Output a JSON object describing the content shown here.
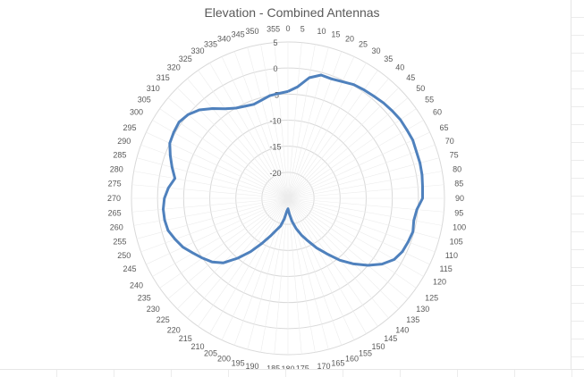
{
  "chart_data": {
    "type": "polar-line",
    "title": "Elevation - Combined Antennas",
    "radial_axis": {
      "min": -25,
      "max": 5,
      "ticks": [
        -20,
        -15,
        -10,
        -5,
        0,
        5
      ],
      "tick_labels": [
        "-20",
        "-15",
        "-10",
        "-5",
        "0",
        "5"
      ]
    },
    "angle_labels": [
      "0",
      "5",
      "10",
      "15",
      "20",
      "25",
      "30",
      "35",
      "40",
      "45",
      "50",
      "55",
      "60",
      "65",
      "70",
      "75",
      "80",
      "85",
      "90",
      "95",
      "100",
      "105",
      "110",
      "115",
      "120",
      "125",
      "130",
      "135",
      "140",
      "145",
      "150",
      "155",
      "160",
      "165",
      "170",
      "175",
      "180",
      "185",
      "190",
      "195",
      "200",
      "205",
      "210",
      "215",
      "220",
      "225",
      "230",
      "235",
      "240",
      "245",
      "250",
      "255",
      "260",
      "265",
      "270",
      "275",
      "280",
      "285",
      "290",
      "295",
      "300",
      "305",
      "310",
      "315",
      "320",
      "325",
      "330",
      "335",
      "340",
      "345",
      "350",
      "355"
    ],
    "series": [
      {
        "color": "#4f81bd",
        "angles": [
          0,
          5,
          10,
          15,
          20,
          25,
          30,
          35,
          40,
          45,
          50,
          55,
          60,
          65,
          70,
          75,
          80,
          85,
          90,
          95,
          100,
          105,
          110,
          115,
          120,
          125,
          130,
          135,
          140,
          145,
          150,
          155,
          160,
          165,
          170,
          175,
          180,
          185,
          190,
          195,
          200,
          205,
          210,
          215,
          220,
          225,
          230,
          235,
          240,
          245,
          250,
          255,
          260,
          265,
          270,
          275,
          280,
          285,
          290,
          295,
          300,
          305,
          310,
          315,
          320,
          325,
          330,
          335,
          340,
          345,
          350,
          355
        ],
        "values": [
          -4.5,
          -3.5,
          -1.5,
          -0.5,
          -0.6,
          -0.3,
          0.2,
          0.4,
          0.6,
          0.9,
          1.1,
          1.3,
          1.3,
          1.4,
          1.2,
          1.2,
          1.1,
          0.9,
          0.8,
          -0.2,
          -0.5,
          -0.2,
          -0.5,
          -0.8,
          -1.5,
          -3.0,
          -5.0,
          -7.2,
          -9.5,
          -12.0,
          -14.0,
          -16.0,
          -17.5,
          -19.0,
          -20.5,
          -22.0,
          -23.0,
          -22.5,
          -21.0,
          -19.5,
          -18.5,
          -17.0,
          -15.0,
          -12.5,
          -10.0,
          -7.5,
          -6.0,
          -5.0,
          -4.0,
          -2.8,
          -2.0,
          -1.2,
          -1.0,
          -1.0,
          -1.3,
          -2.0,
          -3.0,
          -2.0,
          -1.0,
          0.0,
          0.3,
          0.5,
          0.0,
          -1.0,
          -2.5,
          -4.0,
          -5.0,
          -5.5,
          -5.8,
          -5.5,
          -5.0,
          -4.8
        ]
      }
    ]
  }
}
